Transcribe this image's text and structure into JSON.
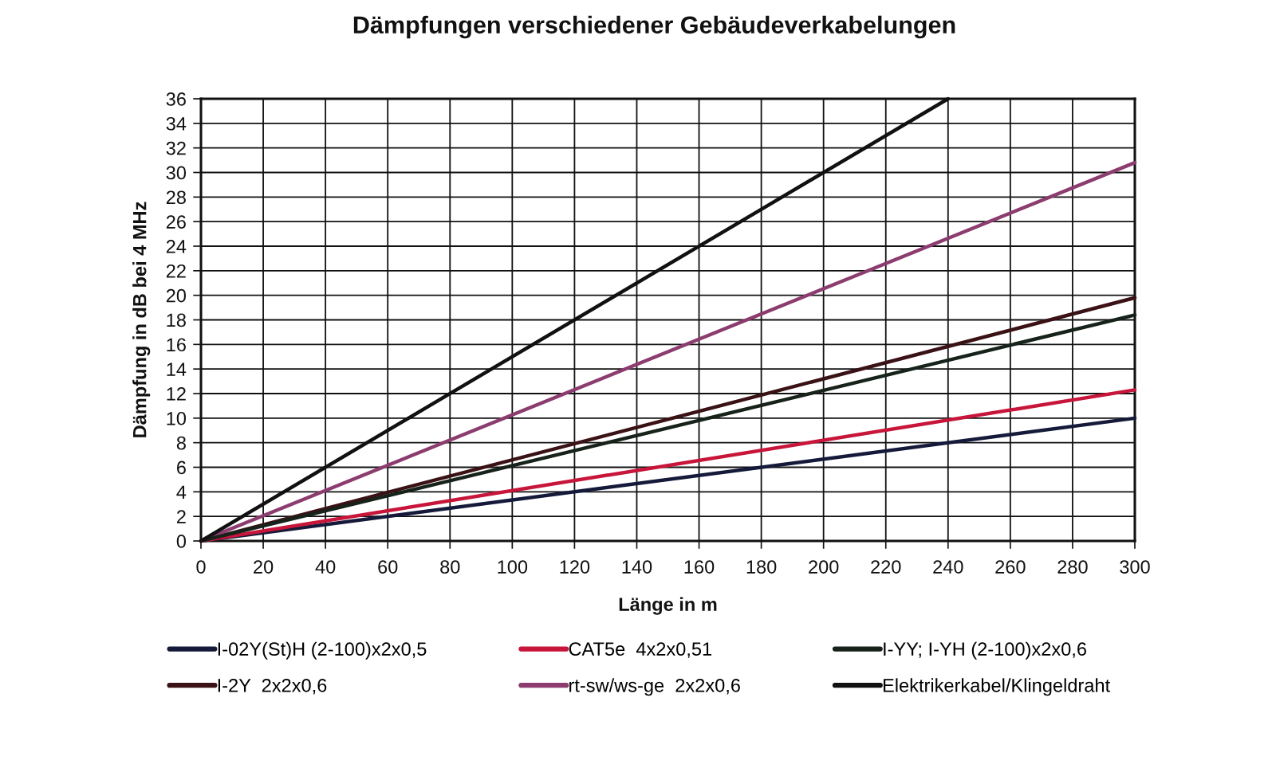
{
  "chart_data": {
    "type": "line",
    "title": "Dämpfungen verschiedener Gebäudeverkabelungen",
    "xlabel": "Länge in m",
    "ylabel": "Dämpfung in dB bei 4 MHz",
    "xlim": [
      0,
      300
    ],
    "xticks": [
      0,
      20,
      40,
      60,
      80,
      100,
      120,
      140,
      160,
      180,
      200,
      220,
      240,
      260,
      280,
      300
    ],
    "ylim": [
      0,
      36
    ],
    "yticks": [
      0,
      2,
      4,
      6,
      8,
      10,
      12,
      14,
      16,
      18,
      20,
      22,
      24,
      26,
      28,
      30,
      32,
      34,
      36
    ],
    "grid": true,
    "legend": "bottom",
    "marker": "none",
    "line_style": "solid",
    "series": [
      {
        "name": "I-02Y(St)H (2-100)x2x0,5",
        "color": "#151a3a",
        "x": [
          0,
          300
        ],
        "values": [
          0,
          10.0
        ]
      },
      {
        "name": "I-2Y  2x2x0,6",
        "color": "#3a1216",
        "x": [
          0,
          300
        ],
        "values": [
          0,
          19.8
        ]
      },
      {
        "name": "CAT5e  4x2x0,51",
        "color": "#c8153a",
        "x": [
          0,
          300
        ],
        "values": [
          0,
          12.3
        ]
      },
      {
        "name": "rt-sw/ws-ge  2x2x0,6",
        "color": "#8c3c6e",
        "x": [
          0,
          300
        ],
        "values": [
          0,
          30.8
        ]
      },
      {
        "name": "I-YY; I-YH (2-100)x2x0,6",
        "color": "#16221a",
        "x": [
          0,
          300
        ],
        "values": [
          0,
          18.4
        ]
      },
      {
        "name": "Elektrikerkabel/Klingeldraht",
        "color": "#111111",
        "x": [
          0,
          240
        ],
        "values": [
          0,
          36
        ]
      }
    ]
  }
}
